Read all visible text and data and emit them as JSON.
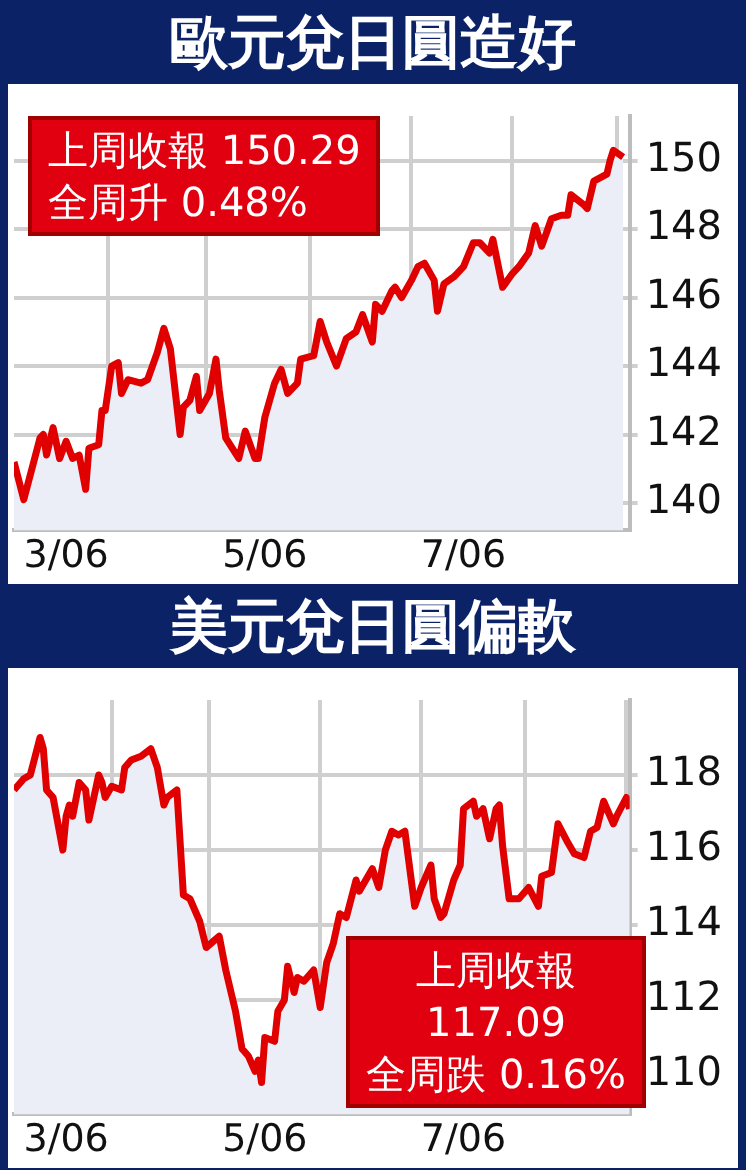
{
  "chart_data": [
    {
      "type": "area",
      "title": "歐元兌日圓造好",
      "annotations": [
        "上周收報 150.29",
        "全周升 0.48%"
      ],
      "x": [
        "2006-02-13",
        "2006-02-16",
        "2006-02-21",
        "2006-02-22",
        "2006-02-23",
        "2006-02-25",
        "2006-02-27",
        "2006-03-01",
        "2006-03-03",
        "2006-03-05",
        "2006-03-07",
        "2006-03-08",
        "2006-03-11",
        "2006-03-12",
        "2006-03-13",
        "2006-03-15",
        "2006-03-17",
        "2006-03-18",
        "2006-03-20",
        "2006-03-24",
        "2006-03-26",
        "2006-03-29",
        "2006-03-31",
        "2006-04-02",
        "2006-04-05",
        "2006-04-06",
        "2006-04-08",
        "2006-04-10",
        "2006-04-11",
        "2006-04-14",
        "2006-04-16",
        "2006-04-17",
        "2006-04-19",
        "2006-04-23",
        "2006-04-25",
        "2006-04-28",
        "2006-04-29",
        "2006-05-01",
        "2006-05-04",
        "2006-05-06",
        "2006-05-08",
        "2006-05-11",
        "2006-05-12",
        "2006-05-16",
        "2006-05-18",
        "2006-05-20",
        "2006-05-23",
        "2006-05-26",
        "2006-05-29",
        "2006-05-31",
        "2006-06-03",
        "2006-06-04",
        "2006-06-06",
        "2006-06-09",
        "2006-06-10",
        "2006-06-12",
        "2006-06-15",
        "2006-06-17",
        "2006-06-19",
        "2006-06-22",
        "2006-06-23",
        "2006-06-25",
        "2006-06-28",
        "2006-06-29",
        "2006-07-01",
        "2006-07-04",
        "2006-07-06",
        "2006-07-09",
        "2006-07-10",
        "2006-07-13",
        "2006-07-16",
        "2006-07-18",
        "2006-07-21",
        "2006-07-23",
        "2006-07-25",
        "2006-07-28",
        "2006-07-31",
        "2006-08-02",
        "2006-08-03",
        "2006-08-07",
        "2006-08-08",
        "2006-08-10",
        "2006-08-14",
        "2006-08-15",
        "2006-08-16",
        "2006-08-19"
      ],
      "series": [
        {
          "color": "#e00000",
          "values": [
            141.2,
            140.1,
            141.9,
            142.0,
            141.4,
            142.2,
            141.3,
            141.8,
            141.3,
            141.4,
            140.4,
            141.6,
            141.7,
            142.7,
            142.7,
            144.0,
            144.1,
            143.2,
            143.6,
            143.5,
            143.6,
            144.4,
            145.1,
            144.5,
            142.0,
            142.8,
            143.0,
            143.7,
            142.7,
            143.2,
            144.2,
            143.3,
            141.9,
            141.3,
            142.1,
            141.3,
            141.3,
            142.5,
            143.5,
            143.9,
            143.2,
            143.5,
            144.2,
            144.3,
            145.3,
            144.7,
            144.0,
            144.8,
            145.0,
            145.5,
            144.7,
            145.8,
            145.6,
            146.2,
            146.3,
            146.0,
            146.5,
            146.9,
            147.0,
            146.5,
            145.6,
            146.4,
            146.6,
            146.7,
            146.9,
            147.6,
            147.6,
            147.3,
            147.7,
            146.3,
            146.7,
            146.9,
            147.3,
            148.1,
            147.5,
            148.3,
            148.4,
            148.4,
            149.0,
            148.7,
            148.6,
            149.4,
            149.6,
            150.0,
            150.3,
            150.1
          ]
        }
      ],
      "xlim": [
        "2006-02-13",
        "2006-08-21"
      ],
      "xticks": [
        {
          "value": "2006-03-01",
          "label": "3/06"
        },
        {
          "value": "2006-03-14",
          "label": null
        },
        {
          "value": "2006-04-13",
          "label": null
        },
        {
          "value": "2006-05-01",
          "label": "5/06"
        },
        {
          "value": "2006-05-15",
          "label": null
        },
        {
          "value": "2006-06-15",
          "label": null
        },
        {
          "value": "2006-07-01",
          "label": "7/06"
        },
        {
          "value": "2006-07-16",
          "label": null
        },
        {
          "value": "2006-08-17",
          "label": null
        }
      ],
      "ylim": [
        139.2,
        151.3
      ],
      "yticks": [
        140,
        142,
        144,
        146,
        148,
        150
      ],
      "grid": true
    },
    {
      "type": "area",
      "title": "美元兌日圓偏軟",
      "annotations": [
        "上周收報",
        "117.09",
        "全周跌 0.16%"
      ],
      "x": [
        "2006-02-13",
        "2006-02-16",
        "2006-02-18",
        "2006-02-21",
        "2006-02-22",
        "2006-02-23",
        "2006-02-25",
        "2006-02-28",
        "2006-03-01",
        "2006-03-02",
        "2006-03-03",
        "2006-03-05",
        "2006-03-07",
        "2006-03-08",
        "2006-03-11",
        "2006-03-12",
        "2006-03-13",
        "2006-03-15",
        "2006-03-18",
        "2006-03-19",
        "2006-03-21",
        "2006-03-24",
        "2006-03-27",
        "2006-03-29",
        "2006-03-31",
        "2006-04-01",
        "2006-04-04",
        "2006-04-06",
        "2006-04-08",
        "2006-04-11",
        "2006-04-13",
        "2006-04-17",
        "2006-04-19",
        "2006-04-22",
        "2006-04-24",
        "2006-04-26",
        "2006-04-28",
        "2006-04-29",
        "2006-04-30",
        "2006-05-01",
        "2006-05-04",
        "2006-05-05",
        "2006-05-07",
        "2006-05-08",
        "2006-05-10",
        "2006-05-11",
        "2006-05-13",
        "2006-05-16",
        "2006-05-18",
        "2006-05-20",
        "2006-05-22",
        "2006-05-24",
        "2006-05-26",
        "2006-05-29",
        "2006-05-30",
        "2006-06-01",
        "2006-06-03",
        "2006-06-05",
        "2006-06-07",
        "2006-06-09",
        "2006-06-11",
        "2006-06-13",
        "2006-06-16",
        "2006-06-18",
        "2006-06-21",
        "2006-06-22",
        "2006-06-24",
        "2006-06-25",
        "2006-06-28",
        "2006-06-30",
        "2006-07-01",
        "2006-07-04",
        "2006-07-05",
        "2006-07-07",
        "2006-07-09",
        "2006-07-11",
        "2006-07-12",
        "2006-07-13",
        "2006-07-15",
        "2006-07-18",
        "2006-07-21",
        "2006-07-24",
        "2006-07-25",
        "2006-07-28",
        "2006-07-30",
        "2006-08-02",
        "2006-08-04",
        "2006-08-07",
        "2006-08-09",
        "2006-08-11",
        "2006-08-13",
        "2006-08-14",
        "2006-08-16",
        "2006-08-17",
        "2006-08-20",
        "2006-08-21"
      ],
      "series": [
        {
          "color": "#e00000",
          "values": [
            117.6,
            117.9,
            118.0,
            119.0,
            118.7,
            117.6,
            117.4,
            116.0,
            116.9,
            117.2,
            116.9,
            117.8,
            117.6,
            116.8,
            118.0,
            117.8,
            117.4,
            117.7,
            117.6,
            118.2,
            118.4,
            118.5,
            118.7,
            118.2,
            117.2,
            117.4,
            117.6,
            114.8,
            114.7,
            114.1,
            113.4,
            113.7,
            112.8,
            111.7,
            110.7,
            110.5,
            110.1,
            110.4,
            109.8,
            111.0,
            110.9,
            111.7,
            112.0,
            112.9,
            112.2,
            112.6,
            112.5,
            112.8,
            111.8,
            113.0,
            113.5,
            114.3,
            114.2,
            115.2,
            114.9,
            115.2,
            115.5,
            115.0,
            116.0,
            116.5,
            116.4,
            116.5,
            114.5,
            115.0,
            115.6,
            114.7,
            114.2,
            114.3,
            115.2,
            115.6,
            117.1,
            117.3,
            116.9,
            117.1,
            116.3,
            117.1,
            117.2,
            116.1,
            114.7,
            114.7,
            115.0,
            114.5,
            115.3,
            115.4,
            116.7,
            116.2,
            115.9,
            115.8,
            116.5,
            116.6,
            117.3,
            117.1,
            116.7,
            116.9,
            117.4,
            117.1
          ]
        }
      ],
      "xlim": [
        "2006-02-13",
        "2006-08-21"
      ],
      "xticks": [
        {
          "value": "2006-03-01",
          "label": "3/06"
        },
        {
          "value": "2006-03-15",
          "label": null
        },
        {
          "value": "2006-04-14",
          "label": null
        },
        {
          "value": "2006-05-01",
          "label": "5/06"
        },
        {
          "value": "2006-05-18",
          "label": null
        },
        {
          "value": "2006-06-18",
          "label": null
        },
        {
          "value": "2006-07-01",
          "label": "7/06"
        },
        {
          "value": "2006-07-20",
          "label": null
        },
        {
          "value": "2006-08-20",
          "label": null
        }
      ],
      "ylim": [
        108.95,
        120
      ],
      "yticks": [
        110,
        112,
        114,
        116,
        118
      ],
      "grid": true
    }
  ]
}
